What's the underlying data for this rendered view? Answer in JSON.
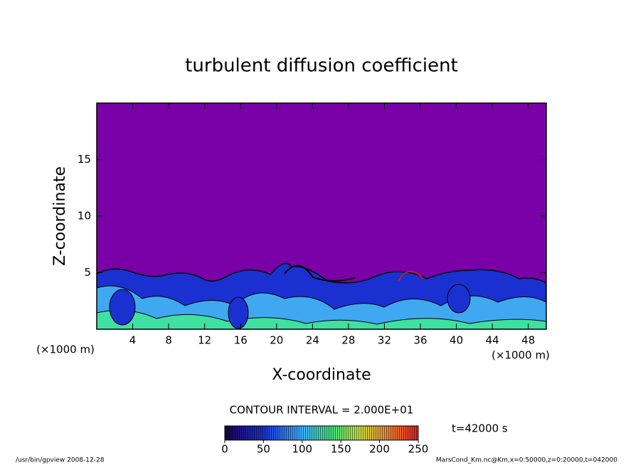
{
  "chart_data": {
    "type": "contour",
    "title": "turbulent diffusion coefficient",
    "x_label": "X-coordinate",
    "y_label": "Z-coordinate",
    "x_unit": "(×1000 m)",
    "y_unit": "(×1000 m)",
    "xlim": [
      0,
      50
    ],
    "ylim": [
      0,
      20
    ],
    "xticks": [
      4,
      8,
      12,
      16,
      20,
      24,
      28,
      32,
      36,
      40,
      44,
      48
    ],
    "yticks": [
      5,
      10,
      15
    ],
    "contour_interval": "CONTOUR INTERVAL = 2.000E+01",
    "colorbar": {
      "lim": [
        0,
        250
      ],
      "ticks": [
        0,
        50,
        100,
        150,
        200,
        250
      ]
    },
    "time_label": "t=42000 s",
    "footer_left": "/usr/bin/gpview   2008-12-28",
    "footer_right": "MarsCond_Km.nc@Km,x=0:50000,z=0:20000,t=042000"
  }
}
